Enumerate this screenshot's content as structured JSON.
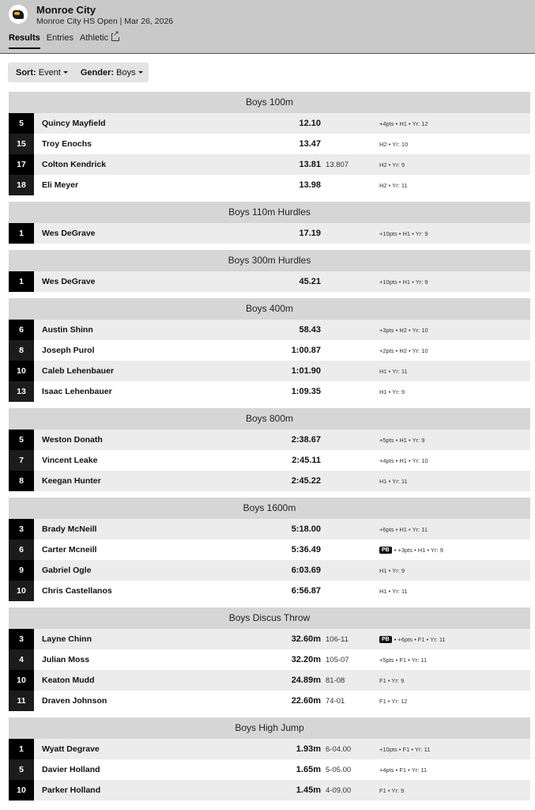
{
  "header": {
    "title": "Monroe City",
    "subtitle": "Monroe City HS Open | Mar 26, 2026",
    "tabs": [
      "Results",
      "Entries",
      "Athletic"
    ]
  },
  "filters": {
    "sort_label": "Sort:",
    "sort_value": "Event",
    "gender_label": "Gender:",
    "gender_value": "Boys"
  },
  "events": [
    {
      "title": "Boys 100m",
      "rows": [
        {
          "place": "5",
          "name": "Quincy Mayfield",
          "mark": "12.10",
          "sub": "",
          "pb": false,
          "info": "+4pts • H1 • Yr: 12"
        },
        {
          "place": "15",
          "name": "Troy Enochs",
          "mark": "13.47",
          "sub": "",
          "pb": false,
          "info": "H2 • Yr: 10"
        },
        {
          "place": "17",
          "name": "Colton Kendrick",
          "mark": "13.81",
          "sub": "13.807",
          "pb": false,
          "info": "H2 • Yr: 9"
        },
        {
          "place": "18",
          "name": "Eli Meyer",
          "mark": "13.98",
          "sub": "",
          "pb": false,
          "info": "H2 • Yr: 11"
        }
      ]
    },
    {
      "title": "Boys 110m Hurdles",
      "rows": [
        {
          "place": "1",
          "name": "Wes DeGrave",
          "mark": "17.19",
          "sub": "",
          "pb": false,
          "info": "+10pts • H1 • Yr: 9"
        }
      ]
    },
    {
      "title": "Boys 300m Hurdles",
      "rows": [
        {
          "place": "1",
          "name": "Wes DeGrave",
          "mark": "45.21",
          "sub": "",
          "pb": false,
          "info": "+10pts • H1 • Yr: 9"
        }
      ]
    },
    {
      "title": "Boys 400m",
      "rows": [
        {
          "place": "6",
          "name": "Austin Shinn",
          "mark": "58.43",
          "sub": "",
          "pb": false,
          "info": "+3pts • H2 • Yr: 10"
        },
        {
          "place": "8",
          "name": "Joseph Purol",
          "mark": "1:00.87",
          "sub": "",
          "pb": false,
          "info": "+2pts • H2 • Yr: 10"
        },
        {
          "place": "10",
          "name": "Caleb Lehenbauer",
          "mark": "1:01.90",
          "sub": "",
          "pb": false,
          "info": "H1 • Yr: 11"
        },
        {
          "place": "13",
          "name": "Isaac Lehenbauer",
          "mark": "1:09.35",
          "sub": "",
          "pb": false,
          "info": "H1 • Yr: 9"
        }
      ]
    },
    {
      "title": "Boys 800m",
      "rows": [
        {
          "place": "5",
          "name": "Weston Donath",
          "mark": "2:38.67",
          "sub": "",
          "pb": false,
          "info": "+5pts • H1 • Yr: 9"
        },
        {
          "place": "7",
          "name": "Vincent Leake",
          "mark": "2:45.11",
          "sub": "",
          "pb": false,
          "info": "+4pts • H1 • Yr: 10"
        },
        {
          "place": "8",
          "name": "Keegan Hunter",
          "mark": "2:45.22",
          "sub": "",
          "pb": false,
          "info": "H1 • Yr: 11"
        }
      ]
    },
    {
      "title": "Boys 1600m",
      "rows": [
        {
          "place": "3",
          "name": "Brady McNeill",
          "mark": "5:18.00",
          "sub": "",
          "pb": false,
          "info": "+6pts • H1 • Yr: 11"
        },
        {
          "place": "6",
          "name": "Carter Mcneill",
          "mark": "5:36.49",
          "sub": "",
          "pb": true,
          "info": "• +3pts • H1 • Yr: 9"
        },
        {
          "place": "9",
          "name": "Gabriel Ogle",
          "mark": "6:03.69",
          "sub": "",
          "pb": false,
          "info": "H1 • Yr: 9"
        },
        {
          "place": "10",
          "name": "Chris Castellanos",
          "mark": "6:56.87",
          "sub": "",
          "pb": false,
          "info": "H1 • Yr: 11"
        }
      ]
    },
    {
      "title": "Boys Discus Throw",
      "rows": [
        {
          "place": "3",
          "name": "Layne Chinn",
          "mark": "32.60m",
          "sub": "106-11",
          "pb": true,
          "info": "• +6pts • F1 • Yr: 11"
        },
        {
          "place": "4",
          "name": "Julian Moss",
          "mark": "32.20m",
          "sub": "105-07",
          "pb": false,
          "info": "+5pts • F1 • Yr: 11"
        },
        {
          "place": "10",
          "name": "Keaton Mudd",
          "mark": "24.89m",
          "sub": "81-08",
          "pb": false,
          "info": "F1 • Yr: 9"
        },
        {
          "place": "11",
          "name": "Draven Johnson",
          "mark": "22.60m",
          "sub": "74-01",
          "pb": false,
          "info": "F1 • Yr: 12"
        }
      ]
    },
    {
      "title": "Boys High Jump",
      "rows": [
        {
          "place": "1",
          "name": "Wyatt Degrave",
          "mark": "1.93m",
          "sub": "6-04.00",
          "pb": false,
          "info": "+10pts • F1 • Yr: 11"
        },
        {
          "place": "5",
          "name": "Davier Holland",
          "mark": "1.65m",
          "sub": "5-05.00",
          "pb": false,
          "info": "+4pts • F1 • Yr: 11"
        },
        {
          "place": "10",
          "name": "Parker Holland",
          "mark": "1.45m",
          "sub": "4-09.00",
          "pb": false,
          "info": "F1 • Yr: 9"
        }
      ]
    }
  ],
  "pb_label": "PB"
}
